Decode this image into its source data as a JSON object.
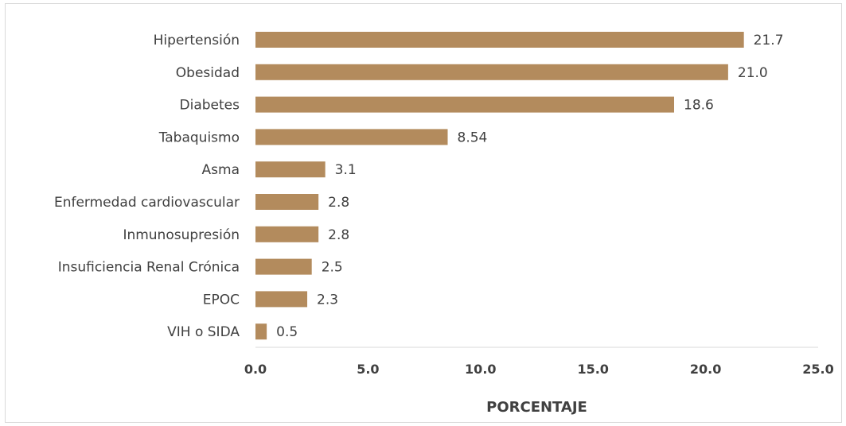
{
  "chart_data": {
    "type": "bar",
    "orientation": "horizontal",
    "title": "",
    "xlabel": "PORCENTAJE",
    "ylabel": "",
    "xlim": [
      0,
      25
    ],
    "x_ticks": [
      "0.0",
      "5.0",
      "10.0",
      "15.0",
      "20.0",
      "25.0"
    ],
    "x_tick_values": [
      0,
      5,
      10,
      15,
      20,
      25
    ],
    "grid": false,
    "bar_color": "#B38B5D",
    "categories": [
      "Hipertensión",
      "Obesidad",
      "Diabetes",
      "Tabaquismo",
      "Asma",
      "Enfermedad cardiovascular",
      "Inmunosupresión",
      "Insuficiencia Renal Crónica",
      "EPOC",
      "VIH o SIDA"
    ],
    "values": [
      21.7,
      21.0,
      18.6,
      8.54,
      3.1,
      2.8,
      2.8,
      2.5,
      2.3,
      0.5
    ],
    "value_labels": [
      "21.7",
      "21.0",
      "18.6",
      "8.54",
      "3.1",
      "2.8",
      "2.8",
      "2.5",
      "2.3",
      "0.5"
    ]
  }
}
